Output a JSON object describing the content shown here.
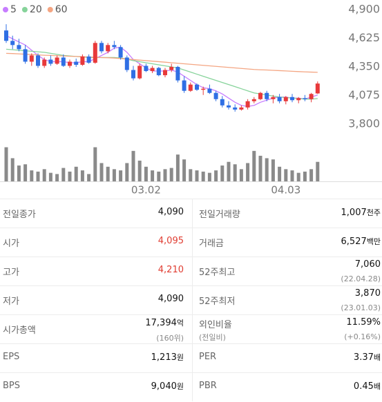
{
  "chart_data": {
    "type": "candlestick",
    "categories": [
      null,
      null,
      null,
      null,
      null,
      null,
      null,
      null,
      null,
      null,
      null,
      null,
      null,
      null,
      null,
      null,
      null,
      null,
      null,
      null,
      null,
      null,
      "03.02",
      null,
      null,
      null,
      null,
      null,
      null,
      null,
      null,
      null,
      null,
      null,
      null,
      null,
      null,
      null,
      null,
      null,
      null,
      null,
      null,
      null,
      "04.03",
      null,
      null,
      null,
      null,
      null
    ],
    "open": [
      4700,
      4600,
      4560,
      4520,
      4400,
      4460,
      4360,
      4420,
      4380,
      4440,
      4360,
      4400,
      4370,
      4450,
      4390,
      4580,
      4500,
      4560,
      4540,
      4440,
      4320,
      4240,
      4360,
      4310,
      4340,
      4270,
      4320,
      4350,
      4220,
      4120,
      4180,
      4130,
      4140,
      4100,
      4040,
      3980,
      3960,
      3940,
      3960,
      4020,
      4040,
      4100,
      4040,
      4060,
      4020,
      4060,
      4030,
      4050,
      4040,
      4095
    ],
    "high": [
      4760,
      4650,
      4620,
      4560,
      4480,
      4480,
      4440,
      4460,
      4460,
      4470,
      4420,
      4430,
      4470,
      4470,
      4600,
      4600,
      4580,
      4600,
      4560,
      4460,
      4360,
      4380,
      4380,
      4360,
      4350,
      4340,
      4380,
      4360,
      4260,
      4200,
      4190,
      4160,
      4180,
      4120,
      4070,
      4020,
      3990,
      3980,
      4040,
      4060,
      4110,
      4120,
      4080,
      4090,
      4070,
      4090,
      4060,
      4080,
      4100,
      4210
    ],
    "low": [
      4580,
      4520,
      4500,
      4380,
      4360,
      4340,
      4340,
      4360,
      4370,
      4350,
      4340,
      4350,
      4360,
      4380,
      4380,
      4480,
      4480,
      4520,
      4420,
      4300,
      4220,
      4230,
      4300,
      4290,
      4260,
      4250,
      4300,
      4200,
      4100,
      4110,
      4120,
      4080,
      4090,
      4020,
      3960,
      3940,
      3920,
      3930,
      3940,
      4000,
      4030,
      4020,
      4000,
      4000,
      3990,
      4010,
      4000,
      4020,
      4010,
      4090
    ],
    "close": [
      4600,
      4560,
      4520,
      4400,
      4460,
      4360,
      4420,
      4380,
      4440,
      4360,
      4400,
      4370,
      4450,
      4390,
      4580,
      4500,
      4560,
      4540,
      4440,
      4320,
      4240,
      4360,
      4310,
      4340,
      4270,
      4320,
      4350,
      4220,
      4120,
      4180,
      4130,
      4140,
      4100,
      4040,
      3980,
      3960,
      3940,
      3960,
      4020,
      4040,
      4100,
      4040,
      4060,
      4020,
      4060,
      4030,
      4050,
      4040,
      4090,
      4190
    ],
    "volume": [
      2800,
      1900,
      1300,
      1400,
      900,
      800,
      1000,
      700,
      600,
      1100,
      800,
      1200,
      900,
      600,
      2800,
      1500,
      1200,
      1000,
      900,
      1500,
      2500,
      1700,
      1200,
      900,
      800,
      1000,
      1100,
      2200,
      1800,
      1000,
      900,
      800,
      700,
      900,
      1300,
      1600,
      1400,
      1000,
      1500,
      2500,
      2100,
      1900,
      1800,
      1200,
      1000,
      900,
      700,
      800,
      1000,
      1600
    ],
    "vlim": [
      0,
      3000
    ],
    "up_color": "#e8393a",
    "down_color": "#2f6fe4",
    "volume_color": "#8a8a8a",
    "series": [
      {
        "name": "5",
        "color": "#c77dff",
        "values": [
          4650,
          4620,
          4590,
          4560,
          4510,
          4460,
          4420,
          4400,
          4400,
          4400,
          4390,
          4390,
          4400,
          4400,
          4430,
          4460,
          4490,
          4530,
          4540,
          4490,
          4420,
          4380,
          4340,
          4310,
          4310,
          4310,
          4320,
          4300,
          4260,
          4220,
          4180,
          4150,
          4140,
          4120,
          4090,
          4050,
          4010,
          3980,
          3970,
          3980,
          4010,
          4030,
          4050,
          4060,
          4060,
          4050,
          4050,
          4040,
          4060,
          4080
        ]
      },
      {
        "name": "20",
        "color": "#86d39a",
        "values": [
          4520,
          4515,
          4510,
          4505,
          4500,
          4495,
          4490,
          4480,
          4470,
          4460,
          4455,
          4450,
          4445,
          4440,
          4440,
          4440,
          4440,
          4440,
          4435,
          4425,
          4410,
          4400,
          4390,
          4380,
          4370,
          4360,
          4350,
          4340,
          4320,
          4300,
          4280,
          4260,
          4240,
          4220,
          4200,
          4180,
          4160,
          4140,
          4120,
          4100,
          4090,
          4080,
          4070,
          4060,
          4055,
          4050,
          4045,
          4040,
          4040,
          4045
        ]
      },
      {
        "name": "60",
        "color": "#f4a582",
        "values": [
          4480,
          4478,
          4475,
          4472,
          4468,
          4465,
          4462,
          4460,
          4457,
          4455,
          4452,
          4450,
          4448,
          4445,
          4443,
          4440,
          4438,
          4435,
          4430,
          4425,
          4420,
          4415,
          4410,
          4405,
          4400,
          4395,
          4390,
          4385,
          4380,
          4375,
          4370,
          4365,
          4360,
          4355,
          4350,
          4345,
          4340,
          4335,
          4330,
          4325,
          4322,
          4320,
          4317,
          4314,
          4311,
          4308,
          4305,
          4302,
          4300,
          4298
        ]
      }
    ],
    "ylim": [
      3800,
      4900
    ],
    "yticks": [
      {
        "value": 4900,
        "label": "4,900"
      },
      {
        "value": 4625,
        "label": "4,625"
      },
      {
        "value": 4350,
        "label": "4,350"
      },
      {
        "value": 4075,
        "label": "4,075"
      },
      {
        "value": 3800,
        "label": "3,800"
      }
    ]
  },
  "table": {
    "rows": [
      [
        {
          "label": "전일종가",
          "value": "4,090"
        },
        {
          "label": "전일거래량",
          "value": "1,007",
          "unit": "천주"
        }
      ],
      [
        {
          "label": "시가",
          "value": "4,095",
          "color": "#e03c31"
        },
        {
          "label": "거래금",
          "value": "6,527",
          "unit": "백만"
        }
      ],
      [
        {
          "label": "고가",
          "value": "4,210",
          "color": "#e03c31"
        },
        {
          "label": "52주최고",
          "value": "7,060",
          "sub": "(22.04.28)"
        }
      ],
      [
        {
          "label": "저가",
          "value": "4,090"
        },
        {
          "label": "52주최저",
          "value": "3,870",
          "sub": "(23.01.03)"
        }
      ],
      [
        {
          "label": "시가총액",
          "value": "17,394",
          "unit": "억",
          "sub": "(160위)"
        },
        {
          "label": "외인비율",
          "label_sub": "(전일비)",
          "value": "11.59%",
          "sub": "(+0.16%)"
        }
      ],
      [
        {
          "label": "EPS",
          "value": "1,213",
          "unit": "원"
        },
        {
          "label": "PER",
          "value": "3.37",
          "unit": "배"
        }
      ],
      [
        {
          "label": "BPS",
          "value": "9,040",
          "unit": "원"
        },
        {
          "label": "PBR",
          "value": "0.45",
          "unit": "배"
        }
      ]
    ]
  }
}
